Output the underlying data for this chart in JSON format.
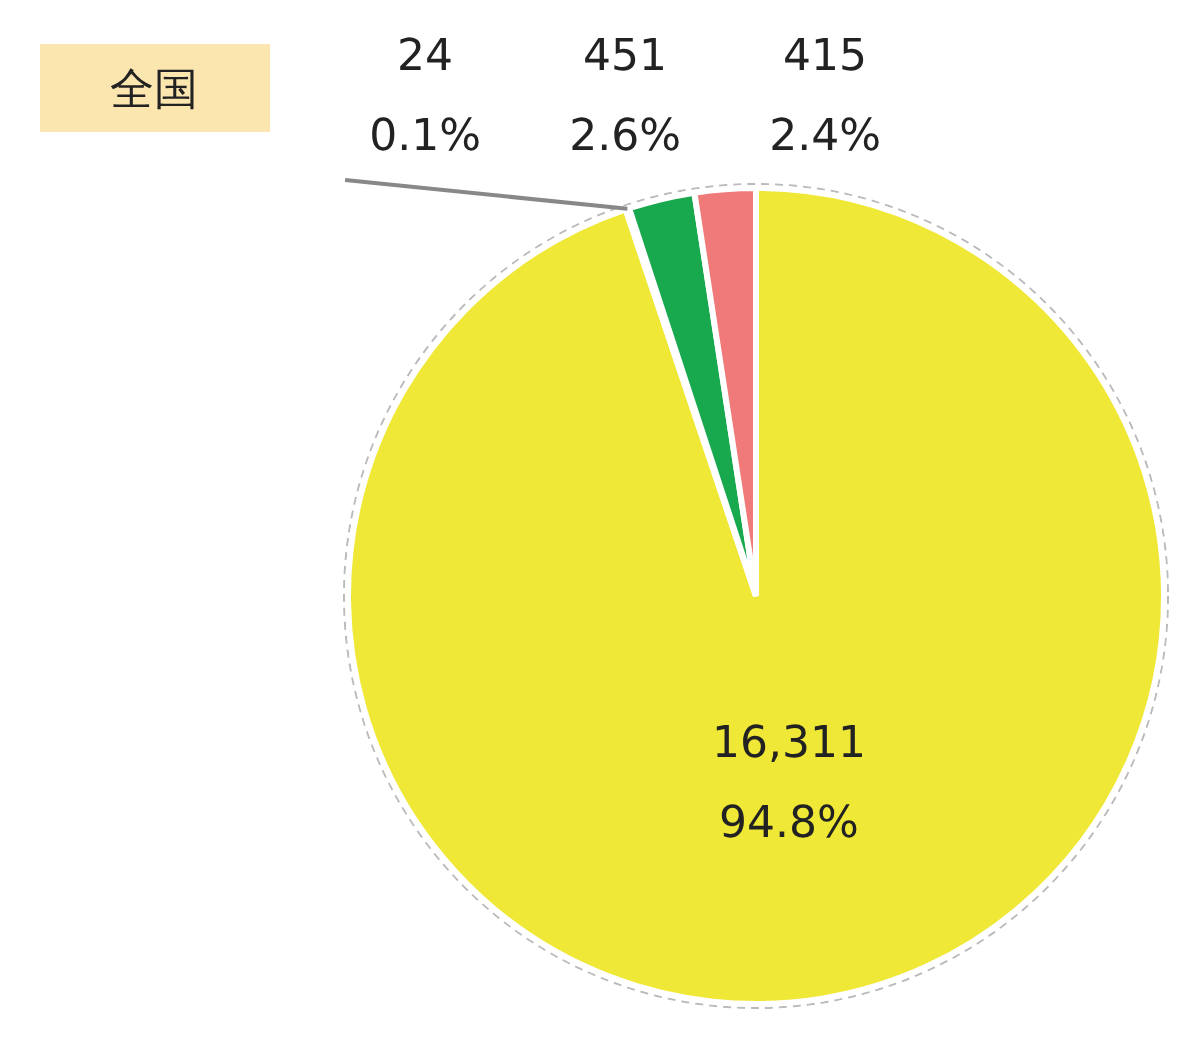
{
  "chart_data": {
    "type": "pie",
    "title": "全国",
    "categories": [
      null,
      null,
      null,
      null
    ],
    "values": [
      16311,
      24,
      451,
      415
    ],
    "colors": [
      "#f0e836",
      "#a0a0a0",
      "#18a84e",
      "#f07a7a"
    ],
    "value_labels": [
      "16,311\n94.8%",
      "24\n0.1%",
      "451\n2.6%",
      "415\n2.4%"
    ]
  }
}
